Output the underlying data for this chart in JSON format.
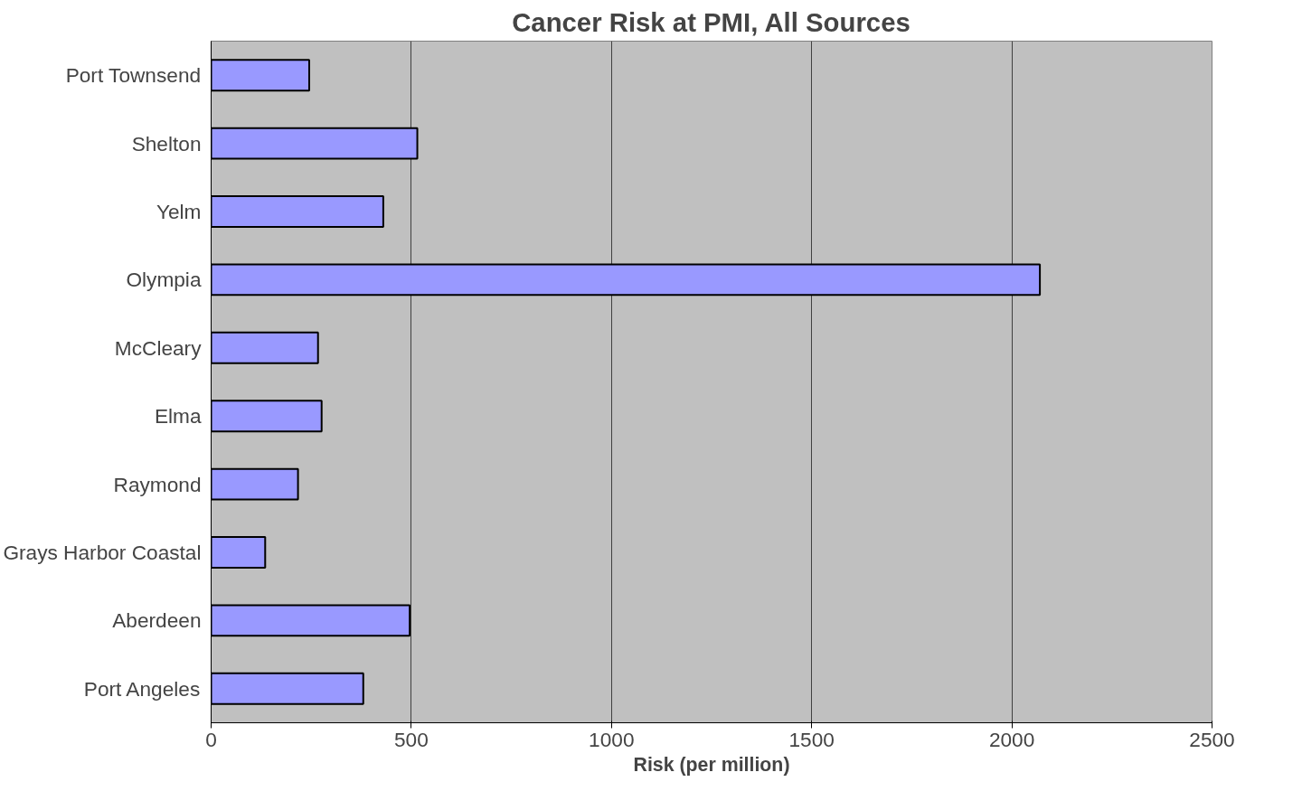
{
  "chart_data": {
    "type": "bar",
    "orientation": "horizontal",
    "title": "Cancer Risk at PMI, All Sources",
    "xlabel": "Risk (per million)",
    "categories": [
      "Port Townsend",
      "Shelton",
      "Yelm",
      "Olympia",
      "McCleary",
      "Elma",
      "Raymond",
      "Grays Harbor Coastal",
      "Aberdeen",
      "Port Angeles"
    ],
    "values": [
      245,
      515,
      430,
      2070,
      267,
      276,
      217,
      135,
      496,
      380
    ],
    "color": "#9999ff",
    "xlim": [
      0,
      2500
    ],
    "xticks": [
      0,
      500,
      1000,
      1500,
      2000,
      2500
    ],
    "grid": "x"
  }
}
